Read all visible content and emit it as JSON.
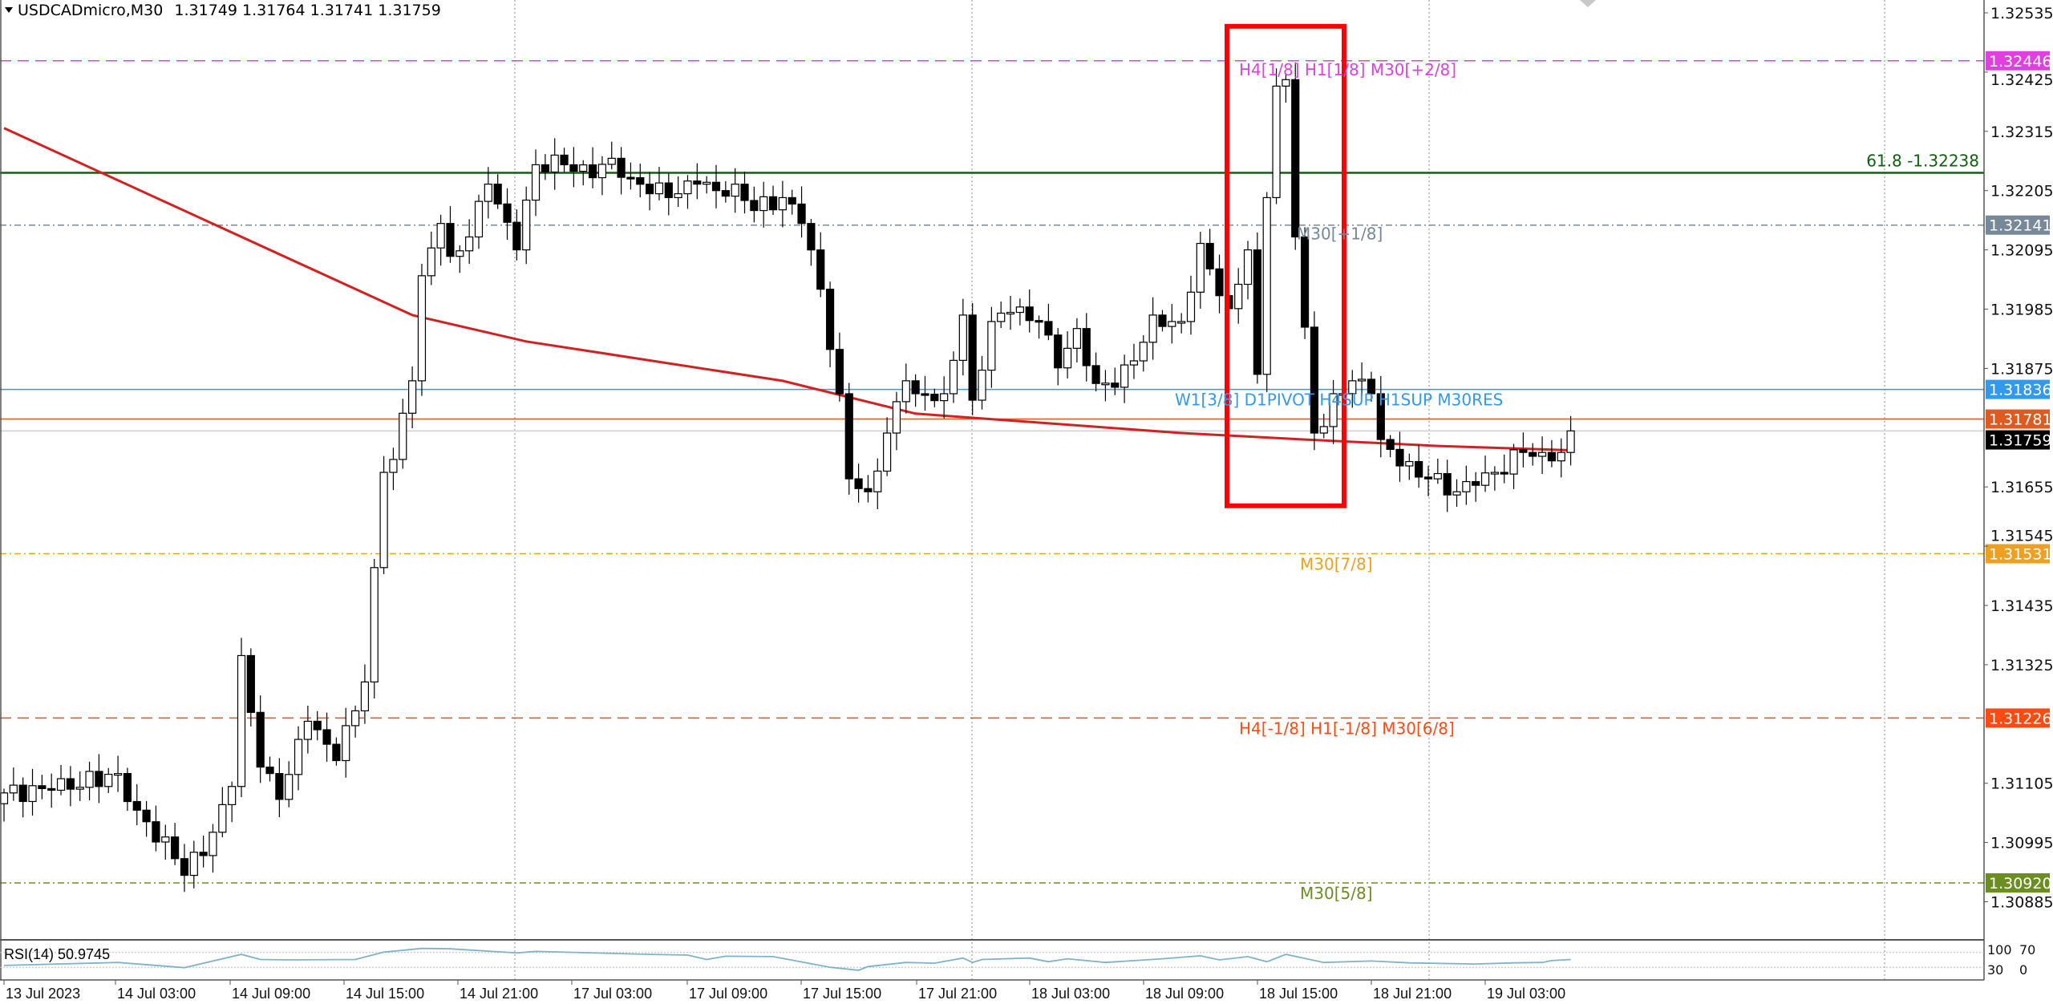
{
  "header": {
    "symbol_timeframe": "USDCADmicro,M30",
    "ohlc_text": "1.31749 1.31764 1.31741 1.31759",
    "menu_icon": "triangle-down-icon"
  },
  "chart_data": {
    "type": "candlestick",
    "symbol": "USDCADmicro",
    "timeframe": "M30",
    "last": {
      "open": 1.31749,
      "high": 1.31764,
      "low": 1.31741,
      "close": 1.31759
    },
    "ylim": [
      1.3085,
      1.3257
    ],
    "y_ticks": [
      "1.32535",
      "1.32425",
      "1.32315",
      "1.32205",
      "1.32095",
      "1.31985",
      "1.31875",
      "1.31655",
      "1.31545",
      "1.31435",
      "1.31325",
      "1.31105",
      "1.30995",
      "1.30885"
    ],
    "x_ticks": [
      "13 Jul 2023",
      "14 Jul 03:00",
      "14 Jul 09:00",
      "14 Jul 15:00",
      "14 Jul 21:00",
      "17 Jul 03:00",
      "17 Jul 09:00",
      "17 Jul 15:00",
      "17 Jul 21:00",
      "18 Jul 03:00",
      "18 Jul 09:00",
      "18 Jul 15:00",
      "18 Jul 21:00",
      "19 Jul 03:00"
    ],
    "grid": "vertical dotted every 4th time label",
    "closes_by_bar": [
      [
        0,
        1.31087
      ],
      [
        5,
        1.31092
      ],
      [
        12,
        1.31123
      ],
      [
        14,
        1.31055
      ],
      [
        18,
        1.30965
      ],
      [
        19,
        1.30934
      ],
      [
        22,
        1.31014
      ],
      [
        24,
        1.31099
      ],
      [
        25,
        1.31342
      ],
      [
        27,
        1.31135
      ],
      [
        29,
        1.31075
      ],
      [
        32,
        1.3122
      ],
      [
        35,
        1.31147
      ],
      [
        38,
        1.31293
      ],
      [
        40,
        1.31682
      ],
      [
        41,
        1.31706
      ],
      [
        43,
        1.31852
      ],
      [
        44,
        1.32047
      ],
      [
        46,
        1.32144
      ],
      [
        47,
        1.32083
      ],
      [
        49,
        1.32119
      ],
      [
        51,
        1.32217
      ],
      [
        54,
        1.32095
      ],
      [
        56,
        1.32253
      ],
      [
        59,
        1.32253
      ],
      [
        62,
        1.32229
      ],
      [
        64,
        1.32265
      ],
      [
        66,
        1.32229
      ],
      [
        70,
        1.32192
      ],
      [
        73,
        1.32217
      ],
      [
        75,
        1.32205
      ],
      [
        77,
        1.32217
      ],
      [
        79,
        1.32168
      ],
      [
        82,
        1.32192
      ],
      [
        84,
        1.32144
      ],
      [
        86,
        1.32022
      ],
      [
        88,
        1.31828
      ],
      [
        89,
        1.3167
      ],
      [
        91,
        1.31646
      ],
      [
        93,
        1.31755
      ],
      [
        95,
        1.31852
      ],
      [
        96,
        1.31828
      ],
      [
        99,
        1.31828
      ],
      [
        101,
        1.31974
      ],
      [
        102,
        1.31816
      ],
      [
        104,
        1.31962
      ],
      [
        106,
        1.31979
      ],
      [
        109,
        1.31962
      ],
      [
        111,
        1.31876
      ],
      [
        113,
        1.31949
      ],
      [
        115,
        1.31847
      ],
      [
        117,
        1.3184
      ],
      [
        119,
        1.31889
      ],
      [
        121,
        1.31974
      ],
      [
        123,
        1.31962
      ],
      [
        124,
        1.31962
      ],
      [
        126,
        1.32107
      ],
      [
        128,
        1.3201
      ],
      [
        129,
        1.31986
      ],
      [
        131,
        1.32095
      ],
      [
        132,
        1.31864
      ],
      [
        133,
        1.32192
      ],
      [
        134,
        1.32399
      ],
      [
        135,
        1.32411
      ],
      [
        136,
        1.32119
      ],
      [
        138,
        1.31755
      ],
      [
        139,
        1.31767
      ],
      [
        140,
        1.31828
      ],
      [
        142,
        1.31852
      ],
      [
        144,
        1.31828
      ],
      [
        145,
        1.31743
      ],
      [
        147,
        1.31694
      ],
      [
        150,
        1.3167
      ],
      [
        153,
        1.31646
      ],
      [
        155,
        1.31658
      ],
      [
        157,
        1.31682
      ],
      [
        160,
        1.31719
      ],
      [
        162,
        1.31719
      ],
      [
        164,
        1.31719
      ],
      [
        165,
        1.31759
      ]
    ],
    "moving_average": {
      "color": "#d42020",
      "points_by_bar": [
        [
          0,
          1.32321
        ],
        [
          43,
          1.31974
        ],
        [
          55,
          1.31925
        ],
        [
          82,
          1.31852
        ],
        [
          96,
          1.31791
        ],
        [
          124,
          1.31755
        ],
        [
          137,
          1.31743
        ],
        [
          151,
          1.31731
        ],
        [
          165,
          1.31723
        ]
      ]
    },
    "levels": [
      {
        "price": 1.32446,
        "tag": "1.32446",
        "color": "#e040e0",
        "style": "dashed",
        "label": "H4[1/8] H1[1/8] M30[+2/8]"
      },
      {
        "price": 1.32238,
        "tag": "",
        "color": "#106010",
        "style": "solid",
        "label": "61.8 -1.32238"
      },
      {
        "price": 1.32141,
        "tag": "1.32141",
        "color": "#778899",
        "style": "dashdot",
        "label": "M30[+1/8]"
      },
      {
        "price": 1.31836,
        "tag": "1.31836",
        "color": "#3399ee",
        "style": "solid",
        "label": "W1[3/8] D1PIVOT H4SUP H1SUP M30RES"
      },
      {
        "price": 1.31781,
        "tag": "1.31781",
        "color": "#e05a20",
        "style": "thin",
        "label": ""
      },
      {
        "price": 1.31759,
        "tag": "1.31759",
        "color": "#000000",
        "style": "bid",
        "label": ""
      },
      {
        "price": 1.31531,
        "tag": "1.31531",
        "color": "#f0a020",
        "style": "dashdot",
        "label": "M30[7/8]"
      },
      {
        "price": 1.31226,
        "tag": "1.31226",
        "color": "#ff4a10",
        "style": "dashed",
        "label": "H4[-1/8] H1[-1/8] M30[6/8]"
      },
      {
        "price": 1.3092,
        "tag": "1.30920",
        "color": "#6b8e23",
        "style": "dashdot",
        "label": "M30[5/8]"
      }
    ],
    "highlight_box": {
      "color": "#ff0000",
      "from_bar": 132,
      "to_bar": 143,
      "price_top": 1.3251,
      "price_bottom": 1.3162
    },
    "rsi": {
      "label": "RSI(14) 50.9745",
      "levels": [
        "100",
        "70",
        "30",
        "0"
      ],
      "color": "#7fb3c8",
      "points_by_bar": [
        [
          0,
          35
        ],
        [
          12,
          43
        ],
        [
          19,
          29
        ],
        [
          25,
          65
        ],
        [
          27,
          51
        ],
        [
          30,
          50
        ],
        [
          37,
          51
        ],
        [
          40,
          71
        ],
        [
          44,
          81
        ],
        [
          47,
          80
        ],
        [
          54,
          69
        ],
        [
          56,
          73
        ],
        [
          68,
          65
        ],
        [
          72,
          63
        ],
        [
          74,
          51
        ],
        [
          76,
          60
        ],
        [
          81,
          59
        ],
        [
          87,
          30
        ],
        [
          90,
          22
        ],
        [
          91,
          32
        ],
        [
          95,
          43
        ],
        [
          98,
          41
        ],
        [
          101,
          55
        ],
        [
          102,
          43
        ],
        [
          103,
          51
        ],
        [
          108,
          55
        ],
        [
          110,
          45
        ],
        [
          112,
          53
        ],
        [
          116,
          43
        ],
        [
          122,
          53
        ],
        [
          126,
          61
        ],
        [
          128,
          50
        ],
        [
          131,
          59
        ],
        [
          133,
          45
        ],
        [
          135,
          65
        ],
        [
          139,
          43
        ],
        [
          144,
          47
        ],
        [
          148,
          42
        ],
        [
          155,
          39
        ],
        [
          159,
          42
        ],
        [
          162,
          43
        ],
        [
          163,
          48
        ],
        [
          165,
          51
        ]
      ]
    }
  }
}
